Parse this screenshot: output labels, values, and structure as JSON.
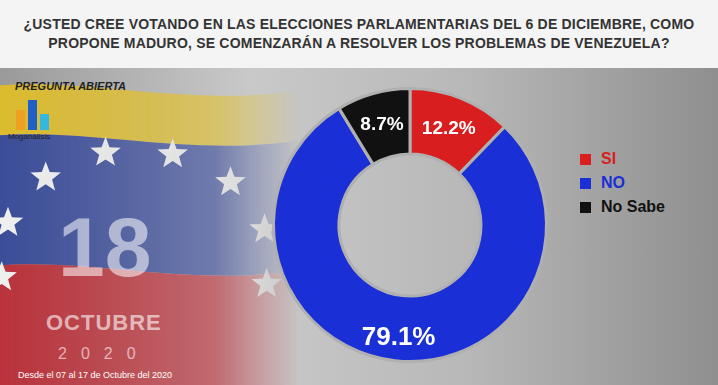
{
  "chart_data": {
    "type": "doughnut",
    "title": "¿USTED CREE VOTANDO EN LAS ELECCIONES PARLAMENTARIAS DEL 6 DE DICIEMBRE, COMO PROPONE MADURO, SE COMENZARÁN A RESOLVER LOS PROBLEMAS DE VENEZUELA?",
    "annotations": [
      "PREGUNTA ABIERTA",
      "Moganálisis",
      "18",
      "OCTUBRE",
      "2020",
      "Desde el 07 al 17 de Octubre del 2020"
    ],
    "categories": [
      "SI",
      "NO",
      "No Sabe"
    ],
    "values": [
      12.2,
      79.1,
      8.7
    ],
    "value_labels": [
      "12.2%",
      "79.1%",
      "8.7%"
    ],
    "colors": [
      "#d81e1e",
      "#1a2fd6",
      "#111111"
    ],
    "data_labels": true,
    "legend": "right"
  }
}
